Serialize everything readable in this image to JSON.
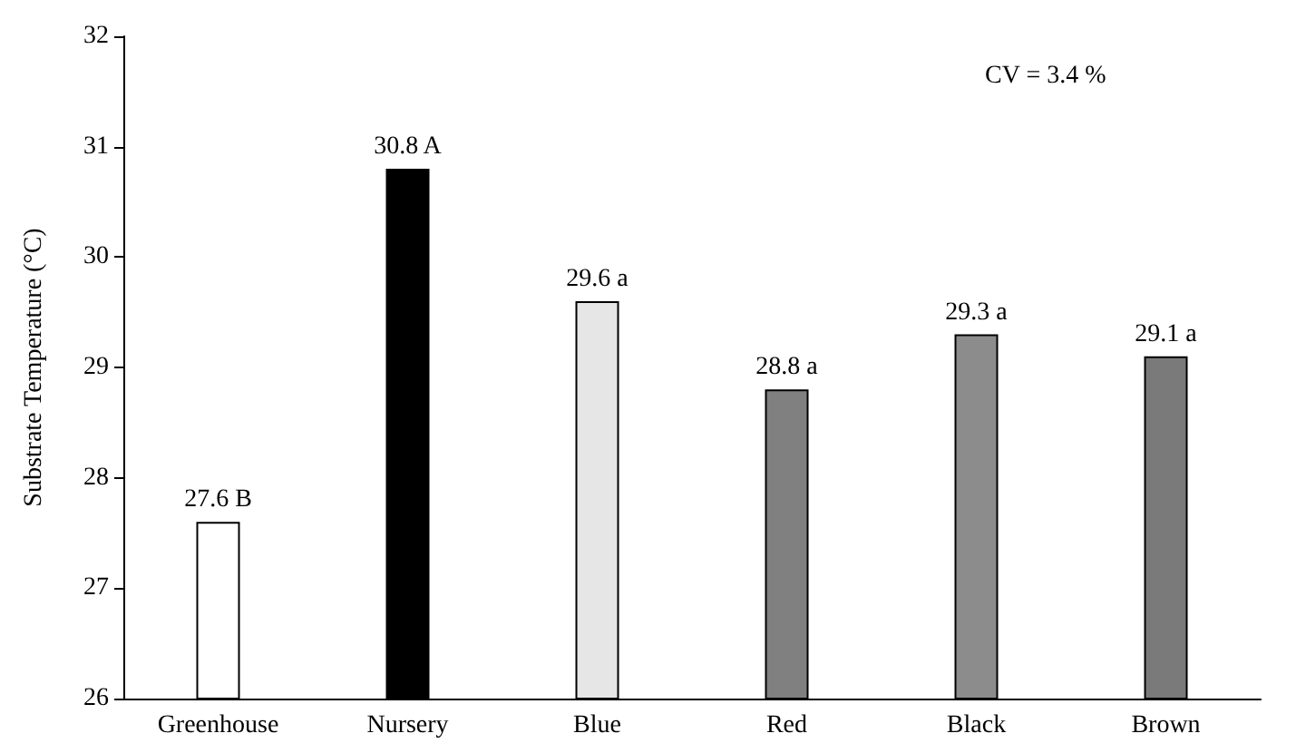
{
  "chart_data": {
    "type": "bar",
    "ylabel": "Substrate Temperature (°C)",
    "categories": [
      "Greenhouse",
      "Nursery",
      "Blue",
      "Red",
      "Black",
      "Brown"
    ],
    "values": [
      27.6,
      30.8,
      29.6,
      28.8,
      29.3,
      29.1
    ],
    "colors": [
      "#ffffff",
      "#000000",
      "#e6e6e6",
      "#808080",
      "#8c8c8c",
      "#7a7a7a"
    ],
    "value_labels": [
      "27.6 B",
      "30.8 A",
      "29.6 a",
      "28.8 a",
      "29.3 a",
      "29.1 a"
    ],
    "ylim": [
      26,
      32
    ],
    "yticks": [
      26,
      27,
      28,
      29,
      30,
      31,
      32
    ],
    "annotations": [
      "CV = 3.4 %"
    ]
  }
}
